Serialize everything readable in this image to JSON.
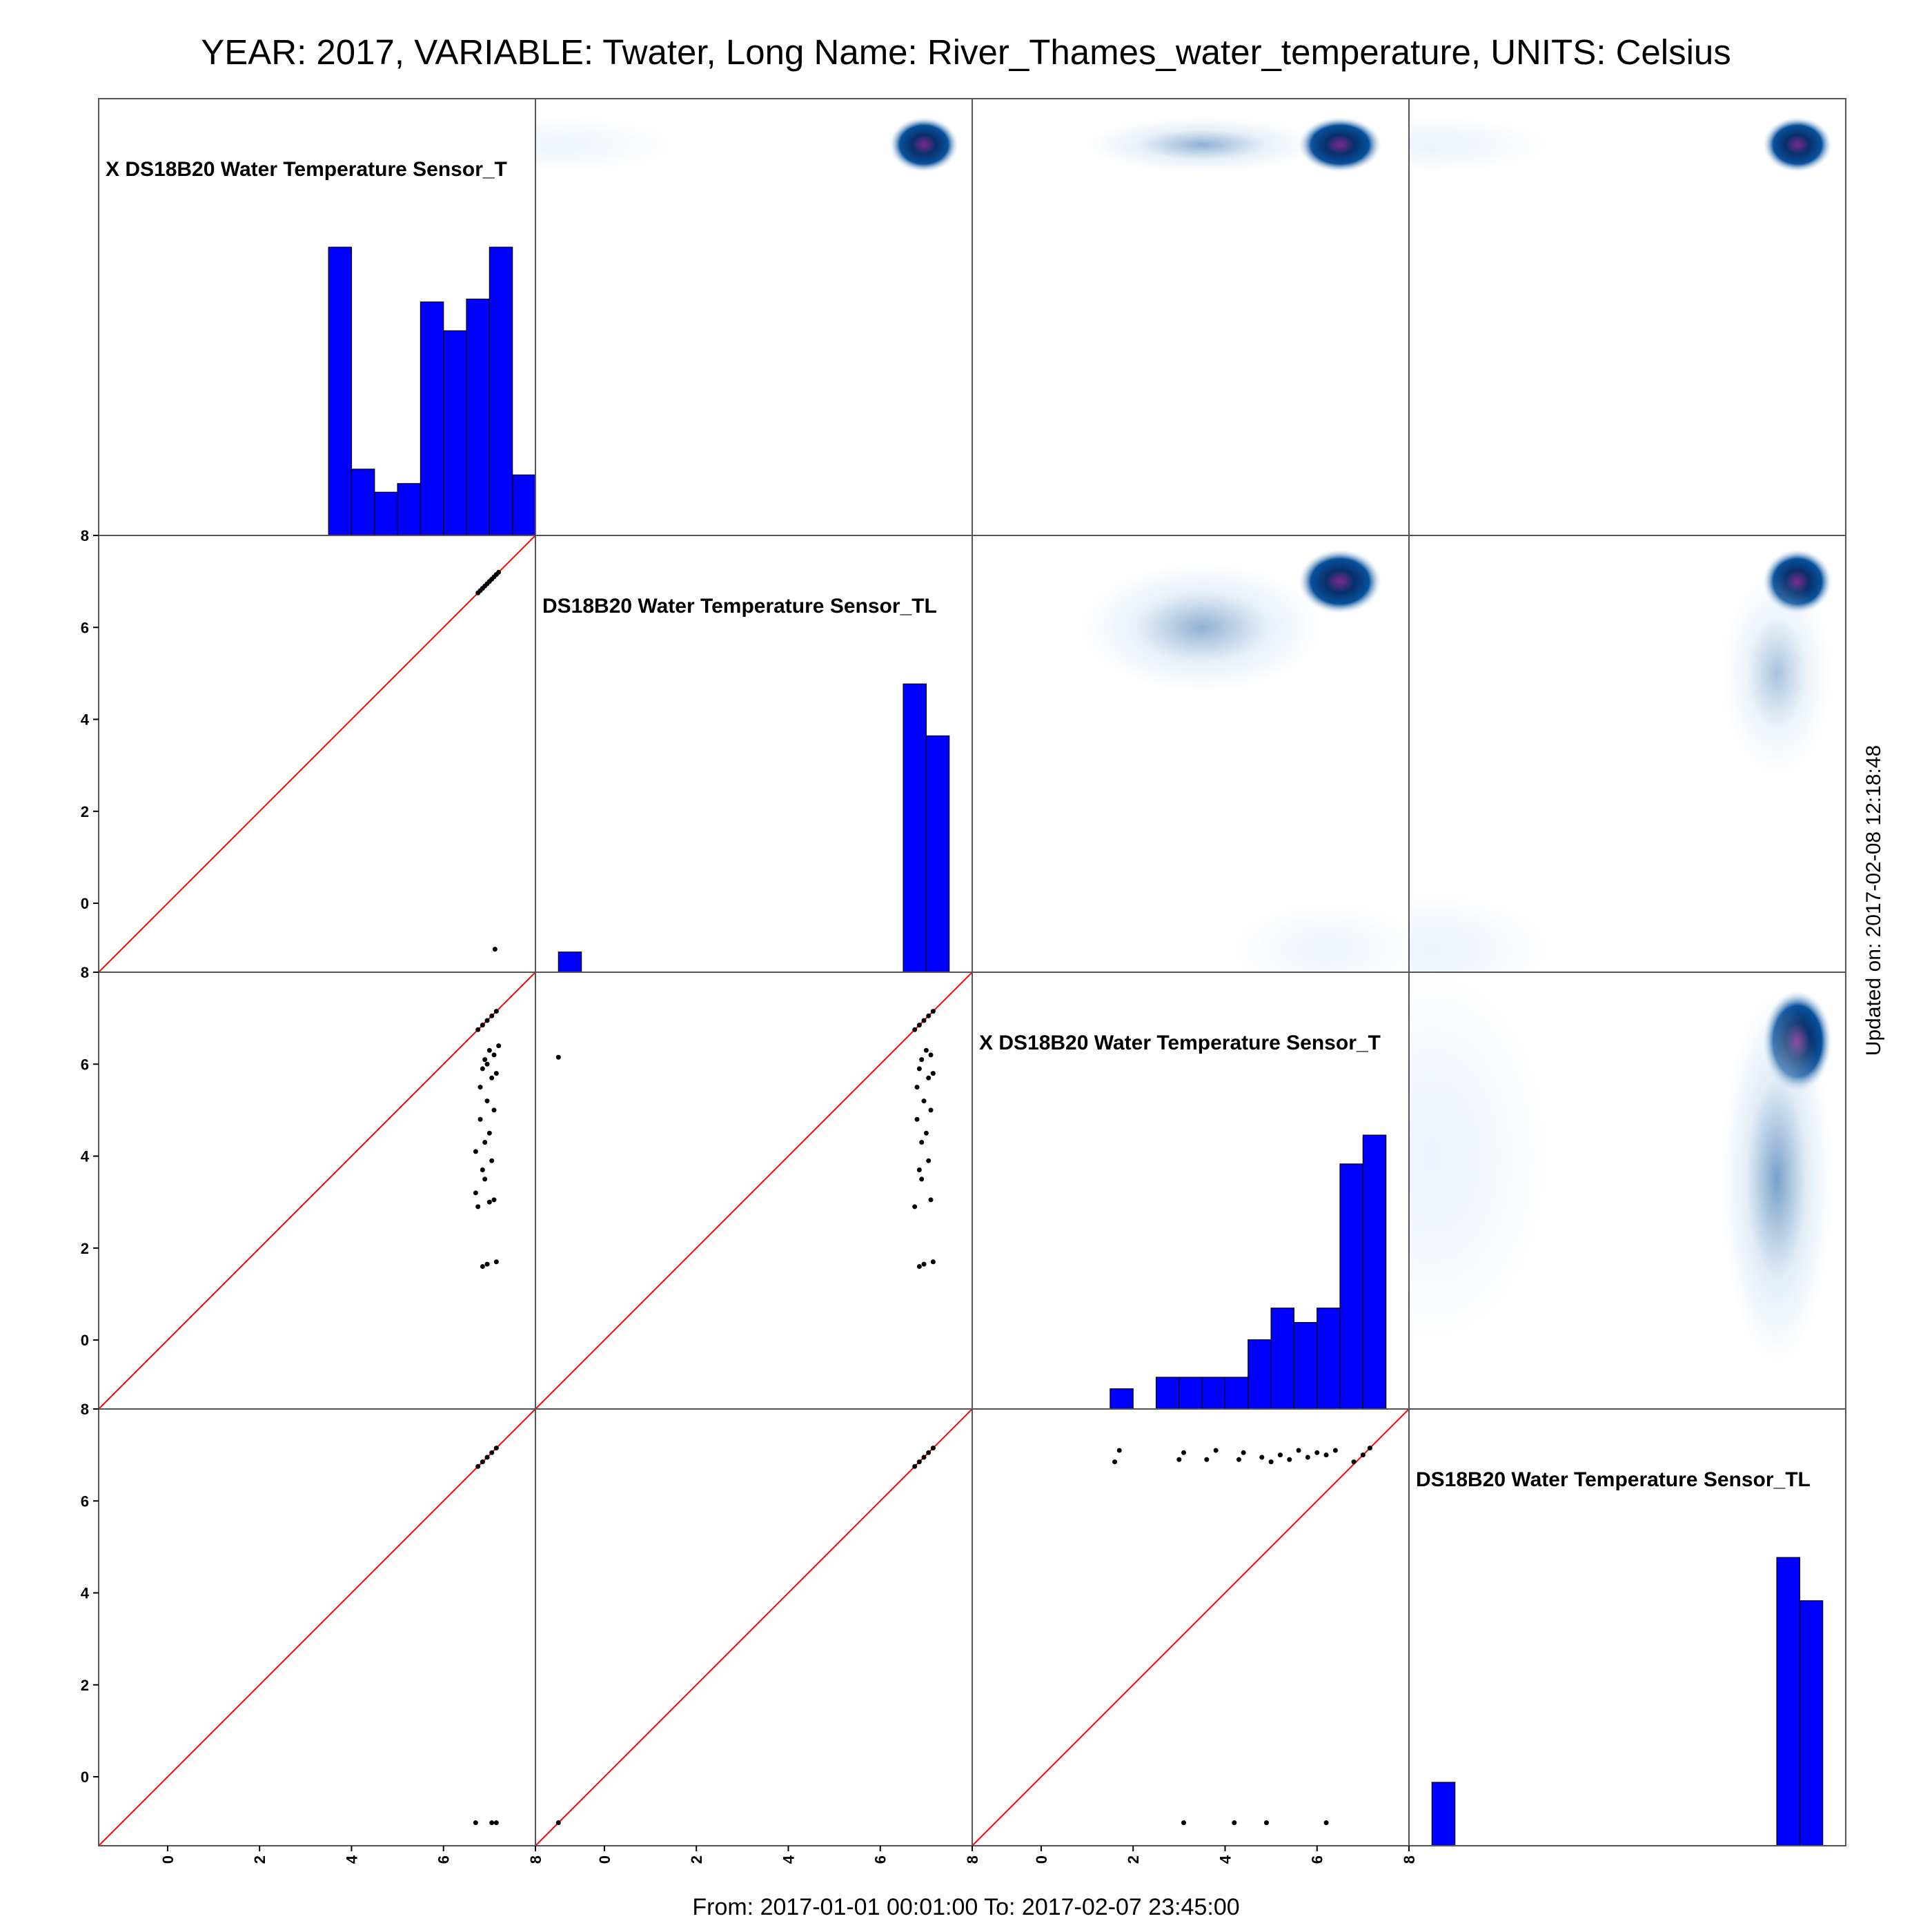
{
  "header": {
    "title": "YEAR: 2017, VARIABLE: Twater, Long Name: River_Thames_water_temperature, UNITS: Celsius",
    "footer": "From: 2017-01-01 00:01:00 To: 2017-02-07 23:45:00",
    "updated": "Updated on: 2017-02-08 12:18:48"
  },
  "chart_data": {
    "type": "scatter",
    "layout": "pairs-matrix",
    "axis_range": [
      -1.5,
      8
    ],
    "ticks": [
      0,
      2,
      4,
      6,
      8
    ],
    "colors": {
      "histogram": "#0000ff",
      "identity_line": "#ff0000",
      "points": "#000000",
      "density_low": "#c6dbef",
      "density_mid": "#08519c",
      "density_high": "#08306b",
      "density_peak": "#7b2a8e"
    },
    "variables": [
      {
        "label": "X DS18B20 Water Temperature Sensor_T"
      },
      {
        "label": "DS18B20 Water Temperature Sensor_TL"
      },
      {
        "label": "X DS18B20 Water Temperature Sensor_T"
      },
      {
        "label": "DS18B20 Water Temperature Sensor_TL"
      }
    ],
    "histograms": [
      {
        "bins": [
          [
            3.5,
            4.0,
            1.0
          ],
          [
            4.0,
            4.5,
            0.23
          ],
          [
            4.5,
            5.0,
            0.15
          ],
          [
            5.0,
            5.5,
            0.18
          ],
          [
            5.5,
            6.0,
            0.81
          ],
          [
            6.0,
            6.5,
            0.71
          ],
          [
            6.5,
            7.0,
            0.82
          ],
          [
            7.0,
            7.5,
            1.0
          ],
          [
            7.5,
            8.0,
            0.21
          ]
        ]
      },
      {
        "bins": [
          [
            -1.0,
            -0.5,
            0.07
          ],
          [
            6.5,
            7.0,
            1.0
          ],
          [
            7.0,
            7.5,
            0.82
          ]
        ]
      },
      {
        "bins": [
          [
            1.5,
            2.0,
            0.07
          ],
          [
            2.5,
            3.0,
            0.11
          ],
          [
            3.0,
            3.5,
            0.11
          ],
          [
            3.5,
            4.0,
            0.11
          ],
          [
            4.0,
            4.5,
            0.11
          ],
          [
            4.5,
            5.0,
            0.24
          ],
          [
            5.0,
            5.5,
            0.35
          ],
          [
            5.5,
            6.0,
            0.3
          ],
          [
            6.0,
            6.5,
            0.35
          ],
          [
            6.5,
            7.0,
            0.85
          ],
          [
            7.0,
            7.5,
            0.95
          ]
        ]
      },
      {
        "bins": [
          [
            -1.0,
            -0.5,
            0.22
          ],
          [
            6.5,
            7.0,
            1.0
          ],
          [
            7.0,
            7.5,
            0.85
          ]
        ]
      }
    ],
    "scatter": [
      {
        "row": 1,
        "col": 0,
        "points": [
          [
            6.75,
            6.75
          ],
          [
            6.8,
            6.8
          ],
          [
            6.85,
            6.85
          ],
          [
            6.9,
            6.9
          ],
          [
            6.95,
            6.95
          ],
          [
            7.0,
            7.0
          ],
          [
            7.05,
            7.05
          ],
          [
            7.1,
            7.1
          ],
          [
            7.15,
            7.15
          ],
          [
            7.2,
            7.2
          ],
          [
            7.12,
            -1.0
          ]
        ]
      },
      {
        "row": 2,
        "col": 0,
        "points": [
          [
            6.75,
            6.75
          ],
          [
            6.85,
            6.85
          ],
          [
            6.95,
            6.95
          ],
          [
            7.05,
            7.05
          ],
          [
            7.15,
            7.15
          ],
          [
            6.9,
            6.1
          ],
          [
            7.0,
            6.3
          ],
          [
            7.1,
            6.2
          ],
          [
            6.85,
            5.9
          ],
          [
            7.05,
            5.7
          ],
          [
            6.8,
            5.5
          ],
          [
            7.15,
            5.8
          ],
          [
            6.95,
            5.2
          ],
          [
            7.1,
            5.0
          ],
          [
            6.8,
            4.8
          ],
          [
            7.0,
            4.5
          ],
          [
            6.9,
            4.3
          ],
          [
            6.7,
            4.1
          ],
          [
            7.05,
            3.9
          ],
          [
            6.85,
            3.7
          ],
          [
            6.9,
            3.5
          ],
          [
            6.7,
            3.2
          ],
          [
            6.75,
            2.9
          ],
          [
            7.0,
            3.0
          ],
          [
            7.1,
            3.05
          ],
          [
            6.85,
            1.6
          ],
          [
            6.95,
            1.65
          ],
          [
            7.15,
            1.7
          ],
          [
            7.2,
            6.4
          ],
          [
            6.95,
            6.0
          ]
        ]
      },
      {
        "row": 2,
        "col": 1,
        "points": [
          [
            -1.0,
            6.15
          ],
          [
            6.75,
            6.75
          ],
          [
            6.85,
            6.85
          ],
          [
            6.95,
            6.95
          ],
          [
            7.05,
            7.05
          ],
          [
            7.15,
            7.15
          ],
          [
            6.9,
            6.1
          ],
          [
            7.0,
            6.3
          ],
          [
            7.1,
            6.2
          ],
          [
            6.85,
            5.9
          ],
          [
            7.05,
            5.7
          ],
          [
            6.8,
            5.5
          ],
          [
            7.15,
            5.8
          ],
          [
            6.95,
            5.2
          ],
          [
            7.1,
            5.0
          ],
          [
            6.8,
            4.8
          ],
          [
            7.0,
            4.5
          ],
          [
            6.9,
            4.3
          ],
          [
            7.05,
            3.9
          ],
          [
            6.85,
            3.7
          ],
          [
            6.9,
            3.5
          ],
          [
            6.75,
            2.9
          ],
          [
            7.1,
            3.05
          ],
          [
            6.85,
            1.6
          ],
          [
            6.95,
            1.65
          ],
          [
            7.15,
            1.7
          ]
        ]
      },
      {
        "row": 3,
        "col": 0,
        "points": [
          [
            6.75,
            6.75
          ],
          [
            6.85,
            6.85
          ],
          [
            6.95,
            6.95
          ],
          [
            7.05,
            7.05
          ],
          [
            7.15,
            7.15
          ],
          [
            6.7,
            -1.0
          ],
          [
            7.05,
            -1.0
          ],
          [
            7.15,
            -1.0
          ]
        ]
      },
      {
        "row": 3,
        "col": 1,
        "points": [
          [
            -1.0,
            -1.0
          ],
          [
            6.75,
            6.75
          ],
          [
            6.85,
            6.85
          ],
          [
            6.95,
            6.95
          ],
          [
            7.05,
            7.05
          ],
          [
            7.15,
            7.15
          ]
        ]
      },
      {
        "row": 3,
        "col": 2,
        "points": [
          [
            1.6,
            6.85
          ],
          [
            1.7,
            7.1
          ],
          [
            3.0,
            6.9
          ],
          [
            3.1,
            7.05
          ],
          [
            3.6,
            6.9
          ],
          [
            3.8,
            7.1
          ],
          [
            4.3,
            6.9
          ],
          [
            4.4,
            7.05
          ],
          [
            4.8,
            6.95
          ],
          [
            5.0,
            6.85
          ],
          [
            5.2,
            7.0
          ],
          [
            5.4,
            6.9
          ],
          [
            5.6,
            7.1
          ],
          [
            5.8,
            6.95
          ],
          [
            6.0,
            7.05
          ],
          [
            6.2,
            7.0
          ],
          [
            6.4,
            7.1
          ],
          [
            6.8,
            6.85
          ],
          [
            7.0,
            7.0
          ],
          [
            7.15,
            7.15
          ],
          [
            3.1,
            -1.0
          ],
          [
            4.2,
            -1.0
          ],
          [
            4.9,
            -1.0
          ],
          [
            6.2,
            -1.0
          ]
        ]
      }
    ],
    "densities": [
      {
        "row": 0,
        "col": 1,
        "blobs": [
          [
            6.95,
            7.0,
            0.75,
            0.6,
            1.0,
            "peak"
          ],
          [
            -1.0,
            7.0,
            2.5,
            0.6,
            0.3,
            "low"
          ]
        ]
      },
      {
        "row": 0,
        "col": 2,
        "blobs": [
          [
            6.5,
            7.0,
            0.9,
            0.6,
            1.0,
            "peak"
          ],
          [
            3.5,
            7.0,
            2.5,
            0.6,
            0.45,
            "mid"
          ]
        ]
      },
      {
        "row": 0,
        "col": 3,
        "blobs": [
          [
            6.95,
            7.0,
            0.75,
            0.6,
            1.0,
            "peak"
          ],
          [
            -1.0,
            7.0,
            2.5,
            0.6,
            0.35,
            "low"
          ]
        ]
      },
      {
        "row": 1,
        "col": 2,
        "blobs": [
          [
            6.5,
            7.0,
            0.9,
            0.7,
            1.0,
            "peak"
          ],
          [
            3.5,
            6.0,
            2.6,
            1.4,
            0.45,
            "mid"
          ],
          [
            6.2,
            -1.0,
            2.0,
            1.0,
            0.3,
            "low"
          ]
        ]
      },
      {
        "row": 1,
        "col": 3,
        "blobs": [
          [
            6.95,
            7.0,
            0.75,
            0.7,
            1.0,
            "peak"
          ],
          [
            -1.0,
            -1.0,
            2.5,
            1.2,
            0.35,
            "low"
          ],
          [
            6.5,
            5.0,
            1.2,
            2.2,
            0.35,
            "mid"
          ]
        ]
      },
      {
        "row": 2,
        "col": 3,
        "blobs": [
          [
            6.95,
            6.5,
            0.75,
            1.1,
            1.0,
            "peak"
          ],
          [
            -1.0,
            4.0,
            2.5,
            4.0,
            0.35,
            "low"
          ],
          [
            6.5,
            3.5,
            1.2,
            4.0,
            0.55,
            "mid"
          ]
        ]
      }
    ]
  }
}
